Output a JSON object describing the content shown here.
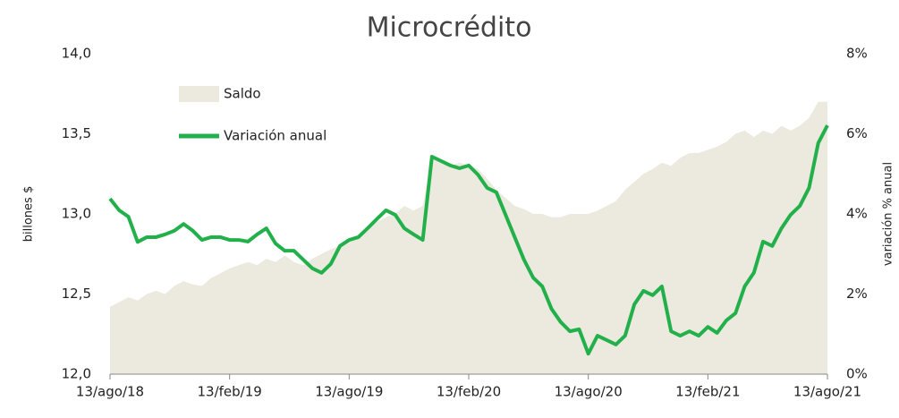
{
  "chart_data": {
    "type": "combo",
    "title": "Microcrédito",
    "y_label": "billones $",
    "y2_label": "variación % anual",
    "categories": [
      "13/ago/18",
      null,
      null,
      null,
      null,
      null,
      null,
      null,
      null,
      null,
      null,
      null,
      null,
      "13/feb/19",
      null,
      null,
      null,
      null,
      null,
      null,
      null,
      null,
      null,
      null,
      null,
      null,
      "13/ago/19",
      null,
      null,
      null,
      null,
      null,
      null,
      null,
      null,
      null,
      null,
      null,
      null,
      "13/feb/20",
      null,
      null,
      null,
      null,
      null,
      null,
      null,
      null,
      null,
      null,
      null,
      null,
      "13/ago/20",
      null,
      null,
      null,
      null,
      null,
      null,
      null,
      null,
      null,
      null,
      null,
      null,
      "13/feb/21",
      null,
      null,
      null,
      null,
      null,
      null,
      null,
      null,
      null,
      null,
      null,
      null,
      "13/ago/21"
    ],
    "series": [
      {
        "name": "Saldo",
        "type": "area",
        "color": "#ece9df",
        "axis": "y",
        "values": [
          12.42,
          12.45,
          12.48,
          12.46,
          12.5,
          12.52,
          12.5,
          12.55,
          12.58,
          12.56,
          12.55,
          12.6,
          12.63,
          12.66,
          12.68,
          12.7,
          12.68,
          12.72,
          12.7,
          12.74,
          12.7,
          12.68,
          12.72,
          12.75,
          12.78,
          12.8,
          12.83,
          12.86,
          12.9,
          12.95,
          12.98,
          13.0,
          13.05,
          13.02,
          13.05,
          13.35,
          13.32,
          13.3,
          13.32,
          13.3,
          13.28,
          13.22,
          13.15,
          13.1,
          13.05,
          13.03,
          13.0,
          13.0,
          12.98,
          12.98,
          13.0,
          13.0,
          13.0,
          13.02,
          13.05,
          13.08,
          13.15,
          13.2,
          13.25,
          13.28,
          13.32,
          13.3,
          13.35,
          13.38,
          13.38,
          13.4,
          13.42,
          13.45,
          13.5,
          13.52,
          13.48,
          13.52,
          13.5,
          13.55,
          13.52,
          13.55,
          13.6,
          13.7,
          13.7
        ]
      },
      {
        "name": "Variación anual",
        "type": "line",
        "color": "#22b04b",
        "axis": "y2",
        "values": [
          4.38,
          4.09,
          3.93,
          3.3,
          3.42,
          3.42,
          3.49,
          3.58,
          3.75,
          3.58,
          3.35,
          3.42,
          3.42,
          3.35,
          3.35,
          3.31,
          3.49,
          3.64,
          3.26,
          3.08,
          3.08,
          2.86,
          2.64,
          2.53,
          2.75,
          3.2,
          3.35,
          3.42,
          3.64,
          3.87,
          4.09,
          3.98,
          3.64,
          3.49,
          3.35,
          5.43,
          5.32,
          5.21,
          5.14,
          5.21,
          4.98,
          4.65,
          4.54,
          3.98,
          3.42,
          2.86,
          2.41,
          2.19,
          1.63,
          1.3,
          1.07,
          1.12,
          0.51,
          0.96,
          0.85,
          0.74,
          0.96,
          1.74,
          2.08,
          1.97,
          2.19,
          1.07,
          0.96,
          1.07,
          0.96,
          1.18,
          1.03,
          1.34,
          1.52,
          2.19,
          2.53,
          3.31,
          3.2,
          3.64,
          3.98,
          4.2,
          4.65,
          5.77,
          6.21
        ]
      }
    ],
    "ylim": [
      12,
      14
    ],
    "yticks": [
      {
        "value": 12,
        "label": "12,0"
      },
      {
        "value": 12.5,
        "label": "12,5"
      },
      {
        "value": 13,
        "label": "13,0"
      },
      {
        "value": 13.5,
        "label": "13,5"
      },
      {
        "value": 14,
        "label": "14,0"
      }
    ],
    "y2lim": [
      0,
      8
    ],
    "y2ticks": [
      {
        "value": 0,
        "label": "0%"
      },
      {
        "value": 2,
        "label": "2%"
      },
      {
        "value": 4,
        "label": "4%"
      },
      {
        "value": 6,
        "label": "6%"
      },
      {
        "value": 8,
        "label": "8%"
      }
    ],
    "grid": false,
    "legend": "top-left"
  }
}
